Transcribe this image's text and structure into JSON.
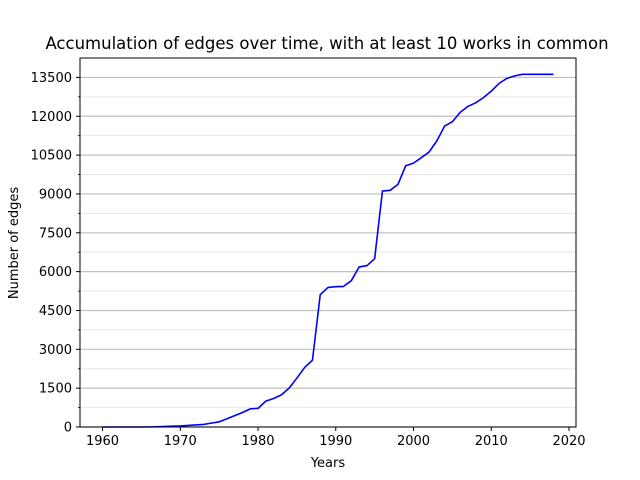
{
  "chart_data": {
    "type": "line",
    "title": "Accumulation of edges over time, with at least 10 works in common",
    "xlabel": "Years",
    "ylabel": "Number of edges",
    "xlim": [
      1957.1,
      2020.9
    ],
    "ylim": [
      0,
      14250
    ],
    "xticks": [
      1960,
      1970,
      1980,
      1990,
      2000,
      2010,
      2020
    ],
    "yticks": [
      0,
      1500,
      3000,
      4500,
      6000,
      7500,
      9000,
      10500,
      12000,
      13500
    ],
    "grid": "horizontal major and minor",
    "series": [
      {
        "color": "#0000ff",
        "x": [
          1960,
          1961,
          1962,
          1963,
          1964,
          1965,
          1966,
          1967,
          1968,
          1969,
          1970,
          1971,
          1972,
          1973,
          1974,
          1975,
          1976,
          1977,
          1978,
          1979,
          1980,
          1981,
          1982,
          1983,
          1984,
          1985,
          1986,
          1987,
          1988,
          1989,
          1990,
          1991,
          1992,
          1993,
          1994,
          1995,
          1996,
          1997,
          1998,
          1999,
          2000,
          2001,
          2002,
          2003,
          2004,
          2005,
          2006,
          2007,
          2008,
          2009,
          2010,
          2011,
          2012,
          2013,
          2014,
          2015,
          2016,
          2017,
          2018
        ],
        "y": [
          0,
          0,
          0,
          0,
          0,
          0,
          5,
          10,
          20,
          30,
          40,
          60,
          80,
          100,
          150,
          200,
          320,
          440,
          560,
          700,
          720,
          1000,
          1100,
          1240,
          1500,
          1890,
          2300,
          2580,
          5110,
          5390,
          5420,
          5430,
          5650,
          6180,
          6230,
          6500,
          9110,
          9140,
          9370,
          10090,
          10190,
          10400,
          10620,
          11050,
          11620,
          11790,
          12150,
          12380,
          12520,
          12720,
          12970,
          13270,
          13460,
          13560,
          13620,
          13620,
          13620,
          13620,
          13620
        ]
      }
    ]
  }
}
